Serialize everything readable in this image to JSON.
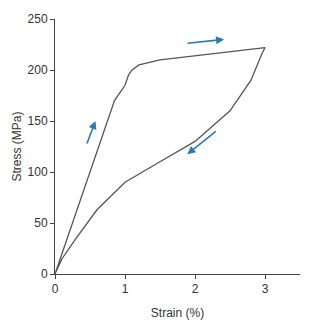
{
  "chart_data": {
    "type": "line",
    "x_label": "Strain (%)",
    "y_label": "Stress (MPa)",
    "x": [
      0,
      0.85,
      1.0,
      1.05,
      1.1,
      1.2,
      1.5,
      3.0,
      2.95,
      2.8,
      2.5,
      2.0,
      1.5,
      1.0,
      0.6,
      0.3,
      0.1,
      0
    ],
    "values": [
      0,
      170,
      185,
      195,
      200,
      205,
      210,
      222,
      215,
      190,
      160,
      130,
      110,
      90,
      63,
      35,
      15,
      0
    ],
    "color": "#555555",
    "xlim": [
      0,
      3.5
    ],
    "xticks": [
      0,
      1,
      2,
      3
    ],
    "ylim": [
      0,
      250
    ],
    "yticks": [
      0,
      50,
      100,
      150,
      200,
      250
    ],
    "grid": false
  }
}
